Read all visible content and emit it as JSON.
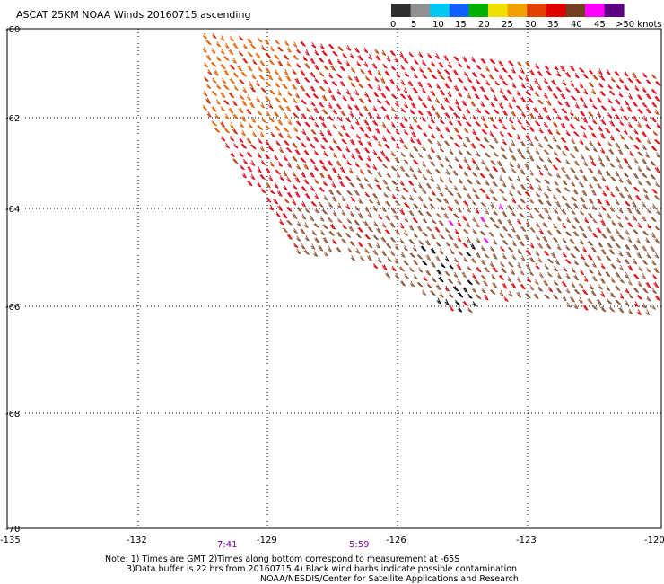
{
  "title": "ASCAT 25KM NOAA Winds 20160715 ascending",
  "legend": {
    "labels": [
      "0",
      "5",
      "10",
      "15",
      "20",
      "25",
      "30",
      "35",
      "40",
      "45",
      ">50 knots"
    ],
    "colors": [
      "#303030",
      "#909090",
      "#00c8f0",
      "#1060ff",
      "#00b000",
      "#f0e000",
      "#f0a000",
      "#e04000",
      "#e00000",
      "#704020",
      "#ff00ff",
      "#5a0080"
    ]
  },
  "lat_labels": [
    "-60",
    "-62",
    "-64",
    "-66",
    "-68",
    "-70"
  ],
  "lon_labels": [
    "-135",
    "-132",
    "-129",
    "-126",
    "-123",
    "-120"
  ],
  "times": [
    "7:41",
    "5:59"
  ],
  "notes": [
    "Note: 1) Times are GMT 2)Times along bottom correspond to measurement at -65S",
    "3)Data buffer is 22 hrs from 20160715 4) Black wind barbs indicate possible contamination",
    "NOAA/NESDIS/Center for Satellite Applications and Research"
  ]
}
